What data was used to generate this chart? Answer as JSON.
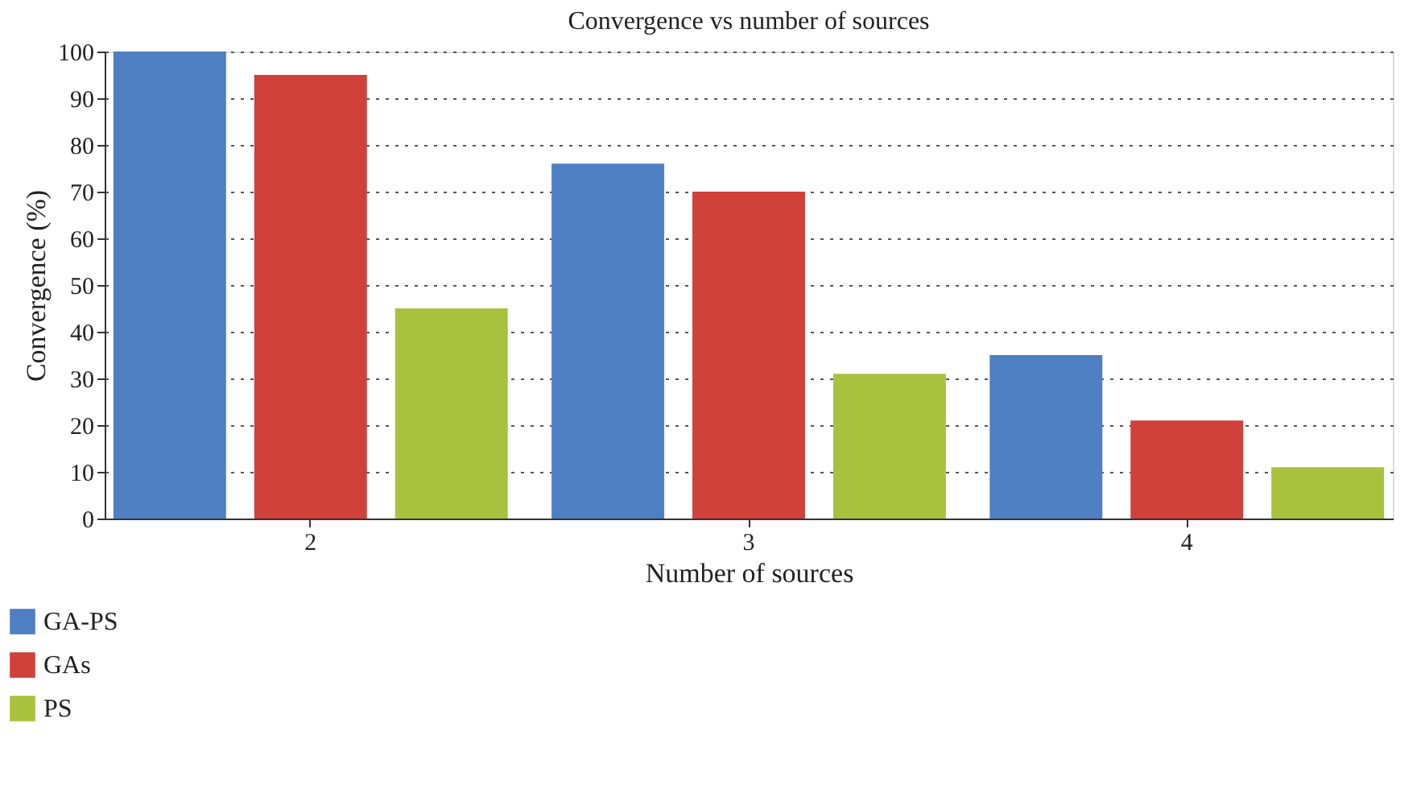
{
  "chart_data": {
    "type": "bar",
    "title": "Convergence vs number of sources",
    "xlabel": "Number of sources",
    "ylabel": "Convergence (%)",
    "categories": [
      "2",
      "3",
      "4"
    ],
    "series": [
      {
        "name": "GA-PS",
        "color": "#4f7fc3",
        "values": [
          100,
          76,
          35
        ]
      },
      {
        "name": "GAs",
        "color": "#d0413a",
        "values": [
          95,
          70,
          21
        ]
      },
      {
        "name": "PS",
        "color": "#a8c23e",
        "values": [
          45,
          31,
          11
        ]
      }
    ],
    "ylim": [
      0,
      100
    ],
    "yticks": [
      0,
      10,
      20,
      30,
      40,
      50,
      60,
      70,
      80,
      90,
      100
    ],
    "grid": "y",
    "legend": "bottom left"
  }
}
